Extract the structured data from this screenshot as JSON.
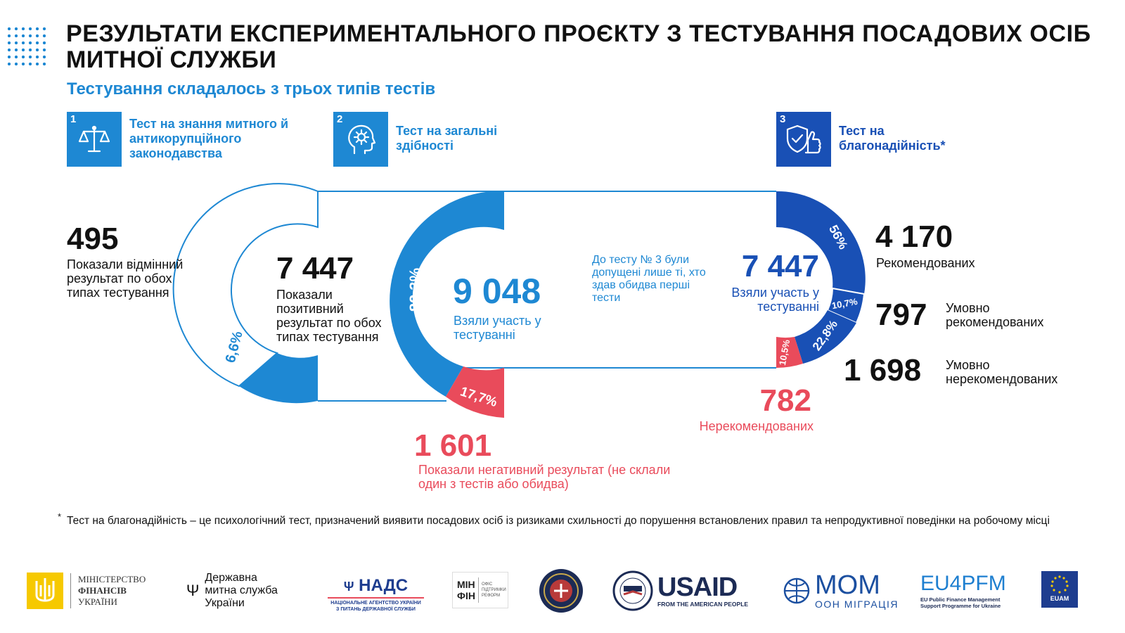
{
  "header": {
    "title": "РЕЗУЛЬТАТИ ЕКСПЕРИМЕНТАЛЬНОГО ПРОЄКТУ З ТЕСТУВАННЯ ПОСАДОВИХ ОСІБ МИТНОЇ СЛУЖБИ",
    "subtitle": "Тестування складалось з трьох типів тестів"
  },
  "tests": [
    {
      "num": "1",
      "label": "Тест на знання митного й антикорупційного законодавства",
      "icon": "scales-icon"
    },
    {
      "num": "2",
      "label": "Тест на загальні здібності",
      "icon": "head-gear-icon"
    },
    {
      "num": "3",
      "label": "Тест на благонадійність*",
      "icon": "shield-thumb-icon"
    }
  ],
  "left": {
    "number": "495",
    "text": "Показали відмінний результат по обох типах тестування",
    "pct": "6,6%"
  },
  "positive": {
    "number": "7 447",
    "text": "Показали позитивний результат по обох типах тестування"
  },
  "center": {
    "number": "9 048",
    "text": "Взяли участь у тестуванні",
    "pct_pass": "82,3%",
    "pct_fail": "17,7%"
  },
  "negative": {
    "number": "1 601",
    "text": "Показали негативний результат (не склали один з тестів або обидва)"
  },
  "note": "До тесту № 3 були допущені лише ті, хто здав обидва перші тести",
  "right": {
    "number": "7 447",
    "text": "Взяли участь у тестуванні",
    "pct_rec": "56%",
    "pct_cond": "10,7%",
    "pct_cond_not": "22,8%",
    "pct_not": "10,5%"
  },
  "outcomes": {
    "recommended": {
      "number": "4 170",
      "label": "Рекомендованих"
    },
    "conditional": {
      "number": "797",
      "label": "Умовно рекомендованих"
    },
    "conditional_not": {
      "number": "1 698",
      "label": "Умовно нерекомендованих"
    },
    "not_recommended": {
      "number": "782",
      "label": "Нерекомендованих"
    }
  },
  "footnote": {
    "star": "*",
    "text": "Тест на благонадійність – це психологічний тест, призначений виявити посадових осіб із ризиками схильності до порушення встановлених правил та непродуктивної поведінки на робочому місці"
  },
  "logos": {
    "minfin": {
      "l1": "МІНІСТЕРСТВО",
      "l2": "ФІНАНСІВ",
      "l3": "УКРАЇНИ"
    },
    "customs": {
      "l1": "Державна",
      "l2": "митна служба",
      "l3": "України"
    },
    "nads": {
      "name": "НАДС",
      "l1": "НАЦІОНАЛЬНЕ АГЕНТСТВО УКРАЇНИ",
      "l2": "З ПИТАНЬ ДЕРЖАВНОЇ СЛУЖБИ"
    },
    "minfin_office": {
      "t1": "МІН",
      "t2": "ФІН",
      "s1": "ОФІС",
      "s2": "ПІДТРИМКИ",
      "s3": "РЕФОРМ"
    },
    "usaid": {
      "name": "USAID",
      "tag": "FROM THE AMERICAN PEOPLE"
    },
    "iom": {
      "name": "МОМ",
      "tag": "ООН МІГРАЦІЯ"
    },
    "eu4pfm": {
      "name": "EU4PFM",
      "l1": "EU Public Finance Management",
      "l2": "Support Programme for Ukraine"
    },
    "euam": {
      "name": "EUAM"
    }
  },
  "colors": {
    "blue": "#1e88d3",
    "dark_blue": "#1950b5",
    "red": "#e94b5b",
    "gold": "#f6c900"
  }
}
